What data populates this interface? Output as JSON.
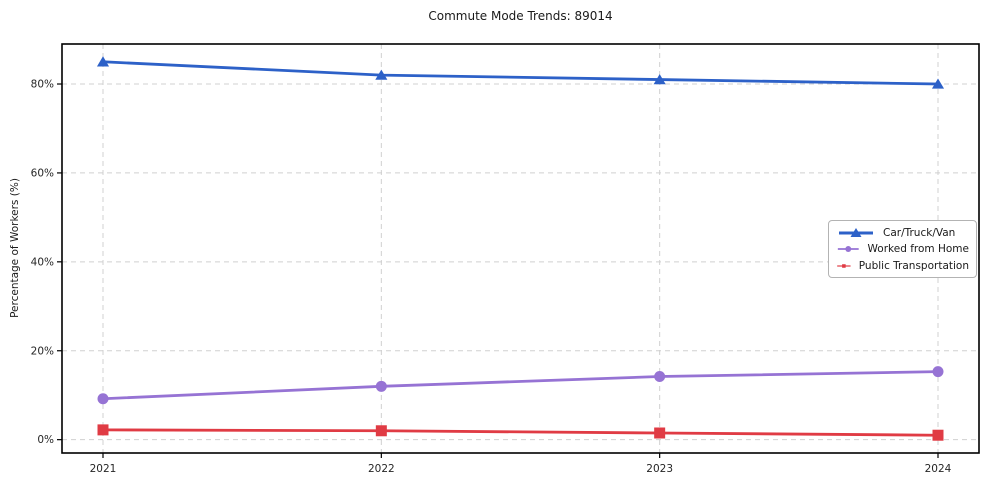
{
  "chart_data": {
    "type": "line",
    "title": "Commute Mode Trends: 89014",
    "ylabel": "Percentage of Workers (%)",
    "xlabel": "",
    "categories": [
      "2021",
      "2022",
      "2023",
      "2024"
    ],
    "series": [
      {
        "name": "Car/Truck/Van",
        "marker": "triangle",
        "color": "#2d61c8",
        "values": [
          85,
          82,
          81,
          80
        ]
      },
      {
        "name": "Worked from Home",
        "marker": "circle",
        "color": "#9673d4",
        "values": [
          9.2,
          12,
          14.2,
          15.3
        ]
      },
      {
        "name": "Public Transportation",
        "marker": "square",
        "color": "#e03b44",
        "values": [
          2.2,
          2,
          1.5,
          1
        ]
      }
    ],
    "yticks": [
      0,
      20,
      40,
      60,
      80
    ],
    "ytick_suffix": "%",
    "ylim": [
      -3,
      89
    ],
    "grid": {
      "visible": true,
      "style": "dashed",
      "color": "#d0d0d0"
    },
    "legend": {
      "position": "right-center"
    },
    "frame_color": "#000000",
    "background": "#ffffff"
  }
}
